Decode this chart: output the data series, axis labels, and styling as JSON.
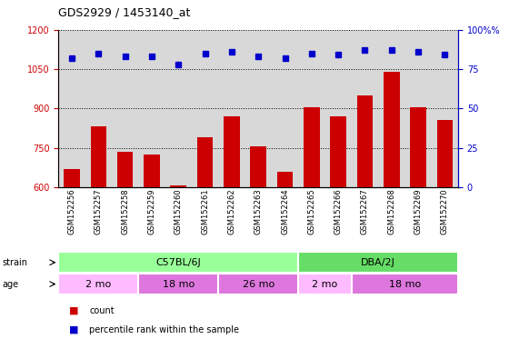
{
  "title": "GDS2929 / 1453140_at",
  "samples": [
    "GSM152256",
    "GSM152257",
    "GSM152258",
    "GSM152259",
    "GSM152260",
    "GSM152261",
    "GSM152262",
    "GSM152263",
    "GSM152264",
    "GSM152265",
    "GSM152266",
    "GSM152267",
    "GSM152268",
    "GSM152269",
    "GSM152270"
  ],
  "counts": [
    670,
    830,
    735,
    725,
    605,
    790,
    870,
    757,
    660,
    905,
    870,
    950,
    1040,
    905,
    855
  ],
  "percentiles": [
    82,
    85,
    83,
    83,
    78,
    85,
    86,
    83,
    82,
    85,
    84,
    87,
    87,
    86,
    84
  ],
  "ylim_left": [
    600,
    1200
  ],
  "ylim_right": [
    0,
    100
  ],
  "yticks_left": [
    600,
    750,
    900,
    1050,
    1200
  ],
  "yticks_right": [
    0,
    25,
    50,
    75,
    100
  ],
  "bar_color": "#cc0000",
  "dot_color": "#0000cc",
  "bg_color": "#ffffff",
  "plot_bg": "#d8d8d8",
  "strain_groups": [
    {
      "label": "C57BL/6J",
      "start": 0,
      "end": 9,
      "color": "#99ff99"
    },
    {
      "label": "DBA/2J",
      "start": 9,
      "end": 15,
      "color": "#66dd66"
    }
  ],
  "age_groups": [
    {
      "label": "2 mo",
      "start": 0,
      "end": 3,
      "color": "#ffbbff"
    },
    {
      "label": "18 mo",
      "start": 3,
      "end": 6,
      "color": "#dd77dd"
    },
    {
      "label": "26 mo",
      "start": 6,
      "end": 9,
      "color": "#dd77dd"
    },
    {
      "label": "2 mo",
      "start": 9,
      "end": 11,
      "color": "#ffbbff"
    },
    {
      "label": "18 mo",
      "start": 11,
      "end": 15,
      "color": "#dd77dd"
    }
  ],
  "legend_items": [
    {
      "color": "#cc0000",
      "label": "count"
    },
    {
      "color": "#0000cc",
      "label": "percentile rank within the sample"
    }
  ]
}
